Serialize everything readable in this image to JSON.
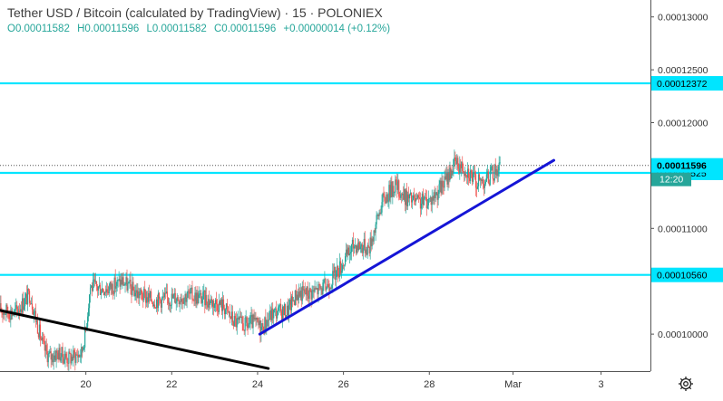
{
  "header": {
    "symbol": "Tether USD / Bitcoin (calculated by TradingView)",
    "interval": "15",
    "exchange": "POLONIEX",
    "separator": "·"
  },
  "ohlc": {
    "open": "O0.00011582",
    "high": "H0.00011596",
    "low": "L0.00011582",
    "close": "C0.00011596",
    "change": "+0.00000014 (+0.12%)"
  },
  "colors": {
    "up": "#26a69a",
    "down": "#ef5350",
    "hline": "#00e5ff",
    "trend_blue": "#1515d6",
    "trend_black": "#000000",
    "price_label_bg": "#00e5ff",
    "countdown_bg": "#26a69a"
  },
  "icons": {
    "settings": "gear-icon"
  },
  "chart_data": {
    "type": "candlestick",
    "y_ticks": [
      "0.00013000",
      "0.00012500",
      "0.00012000",
      "0.00011000",
      "0.00010000"
    ],
    "x_ticks": [
      "20",
      "22",
      "24",
      "26",
      "28",
      "Mar",
      "3"
    ],
    "x_tick_days": [
      20,
      22,
      24,
      26,
      28,
      29.95,
      32
    ],
    "ylim": [
      9.65e-05,
      0.0001316
    ],
    "xlim": [
      18.0,
      33.15
    ],
    "horizontal_levels": [
      {
        "price": 0.00012372,
        "label": "0.00012372"
      },
      {
        "price": 0.00011525,
        "label": "0.00011525"
      },
      {
        "price": 0.0001056,
        "label": "0.00010560"
      }
    ],
    "last_price": {
      "price": 0.00011596,
      "label": "0.00011596",
      "countdown": "12:20"
    },
    "trendlines": [
      {
        "color": "blue",
        "from": [
          24.05,
          0.0001
        ],
        "to": [
          30.9,
          0.00011644
        ]
      },
      {
        "color": "black",
        "from": [
          18.0,
          0.00010225
        ],
        "to": [
          24.25,
          9.675e-05
        ]
      }
    ],
    "price_path": [
      [
        18.0,
        0.0001023
      ],
      [
        18.35,
        0.000102
      ],
      [
        18.7,
        0.0001038
      ],
      [
        18.85,
        0.0001012
      ],
      [
        19.0,
        9.88e-05
      ],
      [
        19.15,
        9.78e-05
      ],
      [
        19.35,
        9.82e-05
      ],
      [
        19.6,
        9.77e-05
      ],
      [
        19.9,
        9.82e-05
      ],
      [
        20.0,
        0.0001005
      ],
      [
        20.1,
        0.0001045
      ],
      [
        20.5,
        0.0001043
      ],
      [
        20.85,
        0.000105
      ],
      [
        21.2,
        0.0001038
      ],
      [
        21.6,
        0.0001032
      ],
      [
        22.0,
        0.0001034
      ],
      [
        22.4,
        0.0001037
      ],
      [
        22.8,
        0.0001033
      ],
      [
        23.2,
        0.0001027
      ],
      [
        23.45,
        0.0001012
      ],
      [
        23.7,
        0.0001008
      ],
      [
        23.9,
        0.0001011
      ],
      [
        24.1,
        0.0001006
      ],
      [
        24.35,
        0.000102
      ],
      [
        24.7,
        0.0001022
      ],
      [
        24.9,
        0.0001038
      ],
      [
        25.3,
        0.000104
      ],
      [
        25.6,
        0.0001045
      ],
      [
        25.95,
        0.0001065
      ],
      [
        26.25,
        0.0001085
      ],
      [
        26.6,
        0.0001082
      ],
      [
        26.9,
        0.0001125
      ],
      [
        27.2,
        0.0001142
      ],
      [
        27.4,
        0.000113
      ],
      [
        27.75,
        0.0001124
      ],
      [
        28.05,
        0.0001128
      ],
      [
        28.3,
        0.000114
      ],
      [
        28.6,
        0.0001162
      ],
      [
        28.9,
        0.0001155
      ],
      [
        29.1,
        0.0001143
      ],
      [
        29.35,
        0.0001147
      ],
      [
        29.65,
        0.0001159
      ]
    ]
  }
}
